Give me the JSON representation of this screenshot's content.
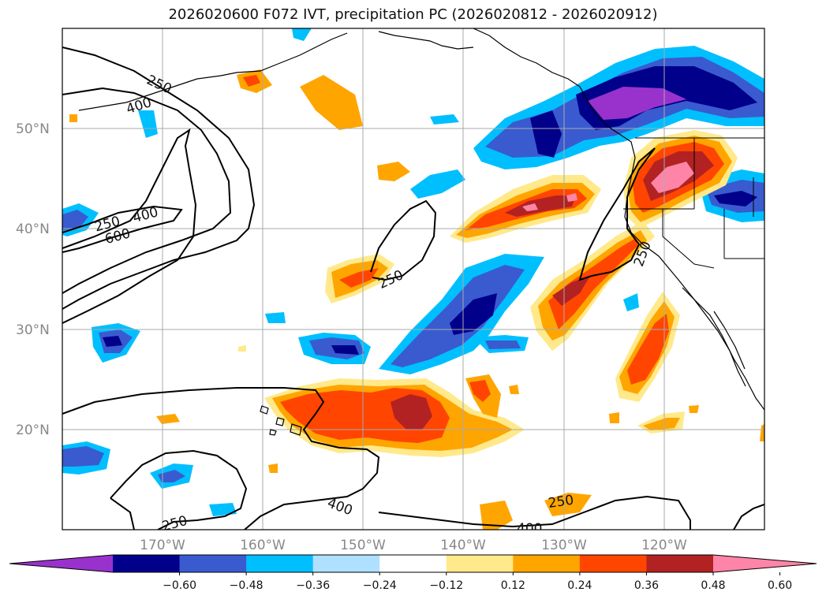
{
  "title": "2026020600 F072 IVT, precipitation PC (2026020812 - 2026020912)",
  "lat_labels": [
    "50°N",
    "40°N",
    "30°N",
    "20°N"
  ],
  "lon_labels": [
    "170°W",
    "160°W",
    "150°W",
    "140°W",
    "130°W",
    "120°W"
  ],
  "contour_labels": [
    "250",
    "400",
    "250",
    "400",
    "600",
    "250",
    "250",
    "400",
    "250",
    "400",
    "250"
  ],
  "colorbar": {
    "colors": [
      "#9932cc",
      "#00008b",
      "#3a5bcf",
      "#00bfff",
      "#b0e0ff",
      "#ffffff",
      "#ffe98a",
      "#ffa500",
      "#ff4500",
      "#b22222",
      "#ff85a8"
    ],
    "tick_labels": [
      "−0.60",
      "−0.48",
      "−0.36",
      "−0.24",
      "−0.12",
      "0.12",
      "0.24",
      "0.36",
      "0.48",
      "0.60"
    ]
  }
}
